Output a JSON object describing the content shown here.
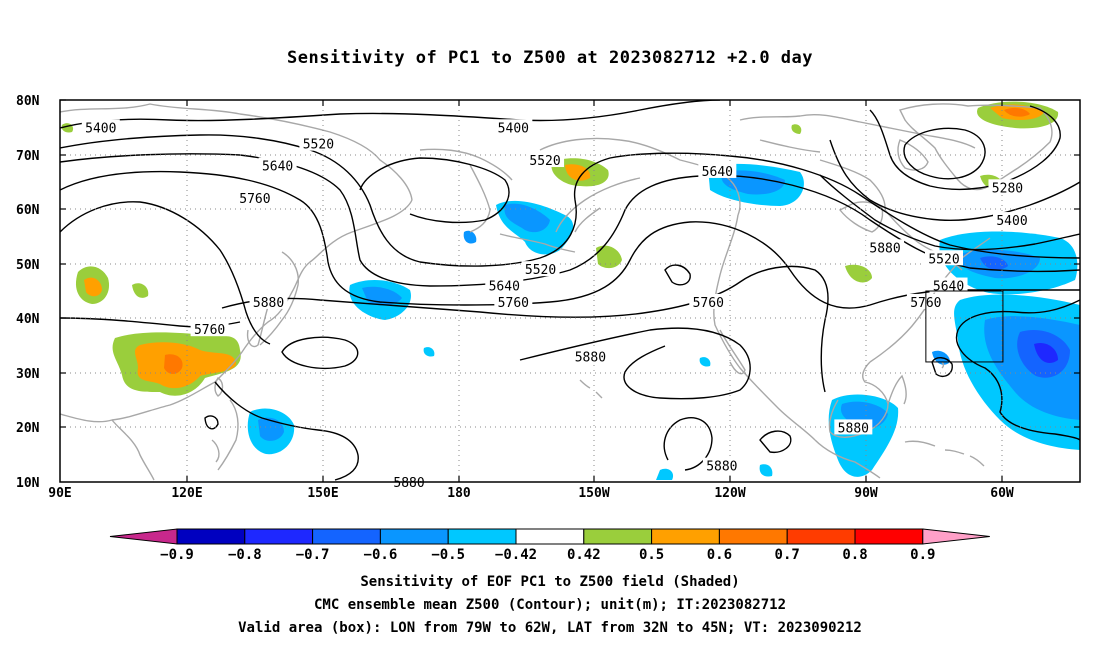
{
  "title": "Sensitivity of PC1 to Z500 at 2023082712 +2.0 day",
  "map": {
    "lat_labels": [
      "80N",
      "70N",
      "60N",
      "50N",
      "40N",
      "30N",
      "20N",
      "10N"
    ],
    "lon_labels": [
      "90E",
      "120E",
      "150E",
      "180",
      "150W",
      "120W",
      "90W",
      "60W"
    ],
    "contour_labels": [
      {
        "text": "5400",
        "lon": 99,
        "lat": 75
      },
      {
        "text": "5400",
        "lon": 190,
        "lat": 75
      },
      {
        "text": "5520",
        "lon": 147,
        "lat": 72
      },
      {
        "text": "5520",
        "lon": 197,
        "lat": 69
      },
      {
        "text": "5520",
        "lon": 196,
        "lat": 49
      },
      {
        "text": "5520",
        "lon": 285,
        "lat": 51
      },
      {
        "text": "5640",
        "lon": 138,
        "lat": 68
      },
      {
        "text": "5640",
        "lon": 235,
        "lat": 67
      },
      {
        "text": "5640",
        "lon": 188,
        "lat": 46
      },
      {
        "text": "5640",
        "lon": 286,
        "lat": 46
      },
      {
        "text": "5760",
        "lon": 133,
        "lat": 62
      },
      {
        "text": "5760",
        "lon": 123,
        "lat": 38
      },
      {
        "text": "5760",
        "lon": 190,
        "lat": 43
      },
      {
        "text": "5760",
        "lon": 233,
        "lat": 43
      },
      {
        "text": "5760",
        "lon": 281,
        "lat": 43
      },
      {
        "text": "5880",
        "lon": 136,
        "lat": 43
      },
      {
        "text": "5880",
        "lon": 272,
        "lat": 53
      },
      {
        "text": "5880",
        "lon": 207,
        "lat": 33
      },
      {
        "text": "5880",
        "lon": 265,
        "lat": 20
      },
      {
        "text": "5880",
        "lon": 236,
        "lat": 13
      },
      {
        "text": "5880",
        "lon": 167,
        "lat": 10
      },
      {
        "text": "5280",
        "lon": 299,
        "lat": 64
      },
      {
        "text": "5400",
        "lon": 300,
        "lat": 58
      }
    ],
    "valid_box": {
      "lon_min": 281,
      "lon_max": 298,
      "lat_min": 32,
      "lat_max": 45
    }
  },
  "colorbar": {
    "labels": [
      "-0.9",
      "-0.8",
      "-0.7",
      "-0.6",
      "-0.5",
      "-0.42",
      "0.42",
      "0.5",
      "0.6",
      "0.7",
      "0.8",
      "0.9"
    ],
    "colors": [
      "#0000c0",
      "#1e28ff",
      "#1464ff",
      "#0a96ff",
      "#00c8ff",
      "#ffffff",
      "#9ace3c",
      "#ffa000",
      "#ff7800",
      "#ff3c00",
      "#ff0000"
    ],
    "low_end_color": "#c8288c",
    "high_end_color": "#ffa0c8"
  },
  "caption": {
    "line1": "Sensitivity of EOF PC1 to Z500 field (Shaded)",
    "line2": "CMC ensemble mean Z500 (Contour); unit(m); IT:2023082712",
    "line3": "Valid area (box): LON from 79W to 62W, LAT from 32N to 45N; VT: 2023090212"
  }
}
